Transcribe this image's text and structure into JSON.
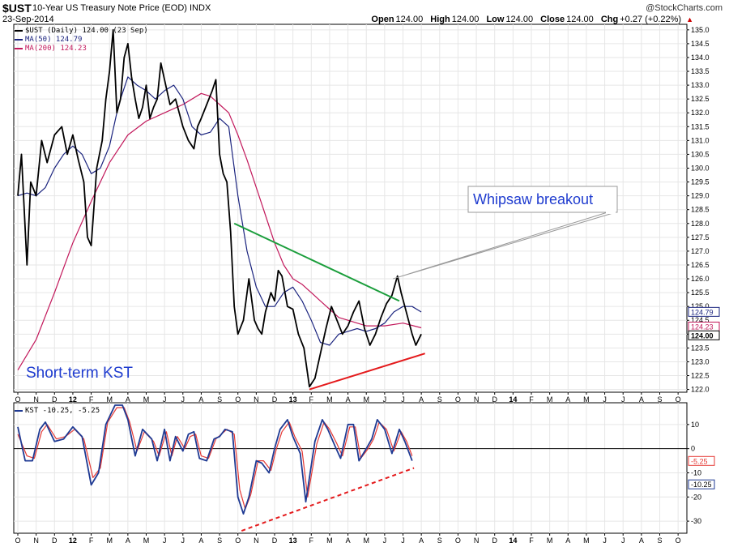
{
  "header": {
    "symbol": "$UST",
    "name": "10-Year US Treasury Note Price (EOD)",
    "exchange": "INDX",
    "date": "23-Sep-2014",
    "credit": "@StockCharts.com",
    "open_label": "Open",
    "open": "124.00",
    "high_label": "High",
    "high": "124.00",
    "low_label": "Low",
    "low": "124.00",
    "close_label": "Close",
    "close": "124.00",
    "chg_label": "Chg",
    "chg": "+0.27 (+0.22%)",
    "chg_arrow": "▲"
  },
  "legend": {
    "price": "$UST (Daily) 124.00 (23 Sep)",
    "ma50": "MA(50) 124.79",
    "ma200": "MA(200) 124.23",
    "kst": "KST -10.25, -5.25"
  },
  "annotations": {
    "whipsaw": "Whipsaw breakout",
    "kst_label": "Short-term KST"
  },
  "colors": {
    "price": "#000000",
    "ma50": "#1a237e",
    "ma200": "#c2185b",
    "kst": "#1f3a93",
    "kst_signal": "#e53935",
    "downtrend": "#1b9e3c",
    "uptrend": "#e41a1c",
    "annotation_text": "#1f3ccf"
  },
  "chart_data": [
    {
      "type": "line",
      "title": "$UST 10-Year US Treasury Note Price (EOD)",
      "xlabel": "",
      "ylabel": "",
      "x_ticks": [
        "O",
        "N",
        "D",
        "12",
        "F",
        "M",
        "A",
        "M",
        "J",
        "J",
        "A",
        "S",
        "O",
        "N",
        "D",
        "13",
        "F",
        "M",
        "A",
        "M",
        "J",
        "J",
        "A",
        "S",
        "O",
        "N",
        "D",
        "14",
        "F",
        "M",
        "A",
        "M",
        "J",
        "J",
        "A",
        "S",
        "O"
      ],
      "y_ticks": [
        122.0,
        122.5,
        123.0,
        123.5,
        124.0,
        124.5,
        125.0,
        125.5,
        126.0,
        126.5,
        127.0,
        127.5,
        128.0,
        128.5,
        129.0,
        129.5,
        130.0,
        130.5,
        131.0,
        131.5,
        132.0,
        132.5,
        133.0,
        133.5,
        134.0,
        134.5,
        135.0
      ],
      "ylim": [
        121.9,
        135.2
      ],
      "grid": true,
      "legend_position": "top-left",
      "last_value_labels": [
        "124.79",
        "124.23",
        "124.00"
      ],
      "price_trace": [
        [
          0,
          129.0
        ],
        [
          0.2,
          130.5
        ],
        [
          0.5,
          126.5
        ],
        [
          0.7,
          129.5
        ],
        [
          1.0,
          129.0
        ],
        [
          1.3,
          131.0
        ],
        [
          1.6,
          130.2
        ],
        [
          2.0,
          131.2
        ],
        [
          2.4,
          131.5
        ],
        [
          2.7,
          130.5
        ],
        [
          3.0,
          131.2
        ],
        [
          3.3,
          130.3
        ],
        [
          3.6,
          129.5
        ],
        [
          3.8,
          127.5
        ],
        [
          4.0,
          127.2
        ],
        [
          4.3,
          130.0
        ],
        [
          4.6,
          131.0
        ],
        [
          4.8,
          132.5
        ],
        [
          5.0,
          133.5
        ],
        [
          5.2,
          135.0
        ],
        [
          5.4,
          132.0
        ],
        [
          5.6,
          132.5
        ],
        [
          5.8,
          134.0
        ],
        [
          6.0,
          134.5
        ],
        [
          6.2,
          133.3
        ],
        [
          6.4,
          132.5
        ],
        [
          6.6,
          131.8
        ],
        [
          6.8,
          132.2
        ],
        [
          7.0,
          133.0
        ],
        [
          7.2,
          131.8
        ],
        [
          7.4,
          132.2
        ],
        [
          7.6,
          132.5
        ],
        [
          7.8,
          133.8
        ],
        [
          8.0,
          133.2
        ],
        [
          8.3,
          132.3
        ],
        [
          8.6,
          132.5
        ],
        [
          9.0,
          131.5
        ],
        [
          9.3,
          131.0
        ],
        [
          9.6,
          130.7
        ],
        [
          9.8,
          131.5
        ],
        [
          10.0,
          131.8
        ],
        [
          10.3,
          132.3
        ],
        [
          10.6,
          132.8
        ],
        [
          10.8,
          133.2
        ],
        [
          11.0,
          130.5
        ],
        [
          11.2,
          129.8
        ],
        [
          11.4,
          129.5
        ],
        [
          11.6,
          127.7
        ],
        [
          11.8,
          125.0
        ],
        [
          12.0,
          124.0
        ],
        [
          12.3,
          124.5
        ],
        [
          12.6,
          126.0
        ],
        [
          12.9,
          124.5
        ],
        [
          13.1,
          124.2
        ],
        [
          13.3,
          124.0
        ],
        [
          13.5,
          124.8
        ],
        [
          13.8,
          125.5
        ],
        [
          14.0,
          125.2
        ],
        [
          14.2,
          126.3
        ],
        [
          14.4,
          126.1
        ],
        [
          14.7,
          125.0
        ],
        [
          15.0,
          124.9
        ],
        [
          15.3,
          124.0
        ],
        [
          15.6,
          123.5
        ],
        [
          15.9,
          122.1
        ],
        [
          16.2,
          122.4
        ],
        [
          16.5,
          123.3
        ],
        [
          16.8,
          124.2
        ],
        [
          17.1,
          125.0
        ],
        [
          17.4,
          124.5
        ],
        [
          17.7,
          124.0
        ],
        [
          18.0,
          124.3
        ],
        [
          18.3,
          124.8
        ],
        [
          18.6,
          125.2
        ],
        [
          18.9,
          124.2
        ],
        [
          19.2,
          123.6
        ],
        [
          19.5,
          124.0
        ],
        [
          19.8,
          124.6
        ],
        [
          20.1,
          125.1
        ],
        [
          20.4,
          125.4
        ],
        [
          20.7,
          126.1
        ],
        [
          20.9,
          125.5
        ],
        [
          21.1,
          125.0
        ],
        [
          21.3,
          124.5
        ],
        [
          21.5,
          124.0
        ],
        [
          21.7,
          123.6
        ],
        [
          22.0,
          124.0
        ]
      ],
      "series": [
        {
          "name": "$UST (Daily)",
          "last": 124.0
        },
        {
          "name": "MA(50)",
          "last": 124.79
        },
        {
          "name": "MA(200)",
          "last": 124.23
        }
      ],
      "ma50_trace": [
        [
          0,
          129.0
        ],
        [
          0.5,
          129.1
        ],
        [
          1.0,
          129.0
        ],
        [
          1.5,
          129.3
        ],
        [
          2.0,
          130.0
        ],
        [
          2.5,
          130.5
        ],
        [
          3.0,
          130.8
        ],
        [
          3.5,
          130.5
        ],
        [
          4.0,
          129.8
        ],
        [
          4.5,
          130.0
        ],
        [
          5.0,
          130.8
        ],
        [
          5.5,
          132.3
        ],
        [
          6.0,
          133.3
        ],
        [
          6.5,
          133.0
        ],
        [
          7.0,
          132.8
        ],
        [
          7.5,
          132.5
        ],
        [
          8.0,
          132.8
        ],
        [
          8.5,
          133.0
        ],
        [
          9.0,
          132.5
        ],
        [
          9.5,
          131.5
        ],
        [
          10.0,
          131.2
        ],
        [
          10.5,
          131.3
        ],
        [
          11.0,
          131.8
        ],
        [
          11.5,
          131.5
        ],
        [
          12.0,
          129.0
        ],
        [
          12.5,
          127.0
        ],
        [
          13.0,
          125.7
        ],
        [
          13.5,
          125.0
        ],
        [
          14.0,
          125.0
        ],
        [
          14.5,
          125.5
        ],
        [
          15.0,
          125.7
        ],
        [
          15.5,
          125.2
        ],
        [
          16.0,
          124.5
        ],
        [
          16.5,
          123.7
        ],
        [
          17.0,
          123.6
        ],
        [
          17.5,
          124.0
        ],
        [
          18.0,
          124.1
        ],
        [
          18.5,
          124.2
        ],
        [
          19.0,
          124.1
        ],
        [
          19.5,
          124.2
        ],
        [
          20.0,
          124.4
        ],
        [
          20.5,
          124.8
        ],
        [
          21.0,
          125.0
        ],
        [
          21.5,
          125.0
        ],
        [
          22.0,
          124.8
        ]
      ],
      "ma200_trace": [
        [
          0,
          122.7
        ],
        [
          1.0,
          123.8
        ],
        [
          2.0,
          125.5
        ],
        [
          3.0,
          127.3
        ],
        [
          4.0,
          128.8
        ],
        [
          5.0,
          130.2
        ],
        [
          6.0,
          131.2
        ],
        [
          7.0,
          131.7
        ],
        [
          8.0,
          132.0
        ],
        [
          9.0,
          132.3
        ],
        [
          10.0,
          132.7
        ],
        [
          10.5,
          132.6
        ],
        [
          11.0,
          132.3
        ],
        [
          11.5,
          132.0
        ],
        [
          12.0,
          131.2
        ],
        [
          12.5,
          130.3
        ],
        [
          13.0,
          129.3
        ],
        [
          13.5,
          128.3
        ],
        [
          14.0,
          127.3
        ],
        [
          14.5,
          126.5
        ],
        [
          15.0,
          126.0
        ],
        [
          15.5,
          125.8
        ],
        [
          16.0,
          125.5
        ],
        [
          16.5,
          125.2
        ],
        [
          17.0,
          124.9
        ],
        [
          17.5,
          124.6
        ],
        [
          18.0,
          124.5
        ],
        [
          18.5,
          124.4
        ],
        [
          19.0,
          124.3
        ],
        [
          20.0,
          124.3
        ],
        [
          21.0,
          124.4
        ],
        [
          22.0,
          124.23
        ]
      ],
      "trendlines": [
        {
          "name": "downtrend",
          "from": [
            11.8,
            128.0
          ],
          "to": [
            20.8,
            125.2
          ]
        },
        {
          "name": "uptrend",
          "from": [
            15.9,
            122.0
          ],
          "to": [
            22.2,
            123.3
          ]
        }
      ]
    },
    {
      "type": "line",
      "title": "KST",
      "x_ticks": [
        "O",
        "N",
        "D",
        "12",
        "F",
        "M",
        "A",
        "M",
        "J",
        "J",
        "A",
        "S",
        "O",
        "N",
        "D",
        "13",
        "F",
        "M",
        "A",
        "M",
        "J",
        "J",
        "A",
        "S",
        "O",
        "N",
        "D",
        "14",
        "F",
        "M",
        "A",
        "M",
        "J",
        "J",
        "A",
        "S",
        "O"
      ],
      "y_ticks": [
        -30,
        -20,
        -10,
        0,
        10
      ],
      "ylim": [
        -35,
        19
      ],
      "grid": true,
      "last_value_labels": [
        "-5.25",
        "-10.25"
      ],
      "series": [
        {
          "name": "KST",
          "last": -10.25
        },
        {
          "name": "Signal",
          "last": -5.25
        }
      ],
      "kst_trace": [
        [
          0,
          9
        ],
        [
          0.4,
          -5
        ],
        [
          0.8,
          -5
        ],
        [
          1.2,
          8
        ],
        [
          1.5,
          11
        ],
        [
          2.0,
          3
        ],
        [
          2.5,
          4
        ],
        [
          3.0,
          9
        ],
        [
          3.5,
          5
        ],
        [
          4.0,
          -15
        ],
        [
          4.4,
          -10
        ],
        [
          4.8,
          10
        ],
        [
          5.3,
          18
        ],
        [
          5.7,
          18
        ],
        [
          6.0,
          12
        ],
        [
          6.4,
          -3
        ],
        [
          6.8,
          8
        ],
        [
          7.3,
          4
        ],
        [
          7.6,
          -5
        ],
        [
          8.0,
          8
        ],
        [
          8.3,
          -5
        ],
        [
          8.6,
          5
        ],
        [
          9.0,
          -1
        ],
        [
          9.3,
          6
        ],
        [
          9.6,
          7
        ],
        [
          9.9,
          -4
        ],
        [
          10.3,
          -5
        ],
        [
          10.7,
          4
        ],
        [
          11.0,
          5
        ],
        [
          11.3,
          8
        ],
        [
          11.7,
          7
        ],
        [
          12.0,
          -20
        ],
        [
          12.3,
          -27
        ],
        [
          12.6,
          -20
        ],
        [
          13.0,
          -5
        ],
        [
          13.3,
          -6
        ],
        [
          13.7,
          -10
        ],
        [
          14.0,
          0
        ],
        [
          14.3,
          8
        ],
        [
          14.7,
          12
        ],
        [
          15.0,
          5
        ],
        [
          15.4,
          -2
        ],
        [
          15.7,
          -22
        ],
        [
          16.2,
          3
        ],
        [
          16.6,
          12
        ],
        [
          16.9,
          8
        ],
        [
          17.3,
          1
        ],
        [
          17.6,
          -4
        ],
        [
          18.0,
          10
        ],
        [
          18.3,
          10
        ],
        [
          18.6,
          -5
        ],
        [
          19.0,
          0
        ],
        [
          19.3,
          4
        ],
        [
          19.6,
          12
        ],
        [
          20.0,
          8
        ],
        [
          20.4,
          -2
        ],
        [
          20.8,
          8
        ],
        [
          21.1,
          3
        ],
        [
          21.5,
          -5
        ]
      ],
      "signal_trace": [
        [
          0,
          6
        ],
        [
          0.5,
          -3
        ],
        [
          0.9,
          -4
        ],
        [
          1.3,
          7
        ],
        [
          1.6,
          10
        ],
        [
          2.1,
          4
        ],
        [
          2.6,
          5
        ],
        [
          3.1,
          8
        ],
        [
          3.6,
          4
        ],
        [
          4.1,
          -12
        ],
        [
          4.5,
          -8
        ],
        [
          4.9,
          11
        ],
        [
          5.4,
          17
        ],
        [
          5.8,
          17
        ],
        [
          6.1,
          11
        ],
        [
          6.5,
          -1
        ],
        [
          6.9,
          7
        ],
        [
          7.4,
          3
        ],
        [
          7.7,
          -3
        ],
        [
          8.1,
          7
        ],
        [
          8.4,
          -3
        ],
        [
          8.7,
          5
        ],
        [
          9.1,
          0
        ],
        [
          9.4,
          5
        ],
        [
          9.7,
          6
        ],
        [
          10.0,
          -3
        ],
        [
          10.4,
          -4
        ],
        [
          10.8,
          4
        ],
        [
          11.1,
          6
        ],
        [
          11.4,
          8
        ],
        [
          11.8,
          6
        ],
        [
          12.1,
          -17
        ],
        [
          12.4,
          -25
        ],
        [
          12.7,
          -19
        ],
        [
          13.1,
          -5
        ],
        [
          13.4,
          -5
        ],
        [
          13.8,
          -9
        ],
        [
          14.1,
          0
        ],
        [
          14.4,
          7
        ],
        [
          14.8,
          11
        ],
        [
          15.1,
          5
        ],
        [
          15.5,
          -1
        ],
        [
          15.8,
          -20
        ],
        [
          16.3,
          2
        ],
        [
          16.7,
          11
        ],
        [
          17.0,
          8
        ],
        [
          17.4,
          2
        ],
        [
          17.7,
          -3
        ],
        [
          18.1,
          9
        ],
        [
          18.4,
          9
        ],
        [
          18.7,
          -4
        ],
        [
          19.1,
          0
        ],
        [
          19.4,
          4
        ],
        [
          19.7,
          11
        ],
        [
          20.1,
          8
        ],
        [
          20.5,
          -1
        ],
        [
          20.9,
          7
        ],
        [
          21.2,
          3
        ],
        [
          21.5,
          -3
        ]
      ],
      "trendlines": [
        {
          "name": "kst-uptrend-dashed",
          "from": [
            12.2,
            -34
          ],
          "to": [
            21.6,
            -8
          ]
        }
      ]
    }
  ]
}
